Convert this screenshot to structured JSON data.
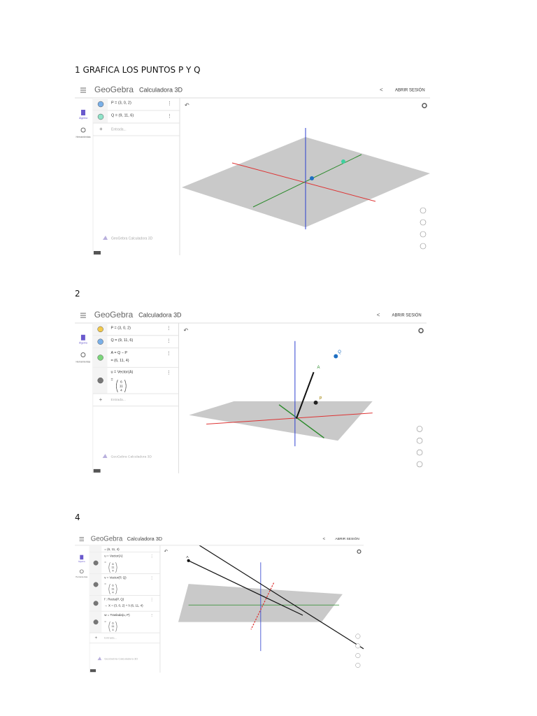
{
  "document": {
    "sections": [
      {
        "heading": "1 GRAFICA LOS PUNTOS P Y Q",
        "app": {
          "brand": "GeoGebra",
          "app_name": "Calculadora 3D",
          "login": "ABRIR SESIÓN",
          "sidebar": [
            "Álgebra",
            "Herramientas"
          ],
          "entries": [
            {
              "color": "#7ab0e8",
              "lines": [
                "P = (3, 0, 2)"
              ]
            },
            {
              "color": "#8fe3c8",
              "lines": [
                "Q = (9, 11, 6)"
              ]
            }
          ],
          "input": "Entrada...",
          "watermark": "GeoGebra Calculadora 3D"
        }
      },
      {
        "heading": "2",
        "app": {
          "brand": "GeoGebra",
          "app_name": "Calculadora 3D",
          "login": "ABRIR SESIÓN",
          "sidebar": [
            "Álgebra",
            "Herramientas"
          ],
          "entries": [
            {
              "color": "#f2c94c",
              "lines": [
                "P = (3, 0, 2)"
              ]
            },
            {
              "color": "#7ab0e8",
              "lines": [
                "Q = (9, 11, 6)"
              ]
            },
            {
              "color": "#7bd67b",
              "lines": [
                "A = Q − P",
                "= (6, 11, 4)"
              ]
            },
            {
              "color": "#777777",
              "lines": [
                "u = Vector(A)",
                "="
              ],
              "matrix": [
                "6",
                "11",
                "4"
              ]
            }
          ],
          "input": "Entrada...",
          "watermark": "GeoGebra Calculadora 3D",
          "graph_labels": [
            "Q",
            "A",
            "P"
          ]
        }
      },
      {
        "heading": "4",
        "app": {
          "brand": "GeoGebra",
          "app_name": "Calculadora 3D",
          "login": "ABRIR SESIÓN",
          "sidebar": [
            "Álgebra",
            "Herramientas"
          ],
          "entries": [
            {
              "lines": [
                "= (6, 11, 4)"
              ]
            },
            {
              "color": "#777777",
              "lines": [
                "u = Vector(A)",
                "="
              ],
              "matrix": [
                "6",
                "11",
                "4"
              ]
            },
            {
              "color": "#777777",
              "lines": [
                "v = Vector(P, Q)",
                "="
              ],
              "matrix": [
                "6",
                "11",
                "4"
              ]
            },
            {
              "color": "#777777",
              "lines": [
                "f : Recta(P, Q)",
                "→ X = (3, 0, 2) + λ (6, 11, 4)"
              ]
            },
            {
              "color": "#777777",
              "lines": [
                "w = Traslada(u, P)",
                "="
              ],
              "matrix": [
                "6",
                "11",
                "4"
              ]
            }
          ],
          "input": "Entrada...",
          "watermark": "GeoGebra Calculadora 3D",
          "graph_labels": [
            "A"
          ]
        }
      }
    ]
  }
}
